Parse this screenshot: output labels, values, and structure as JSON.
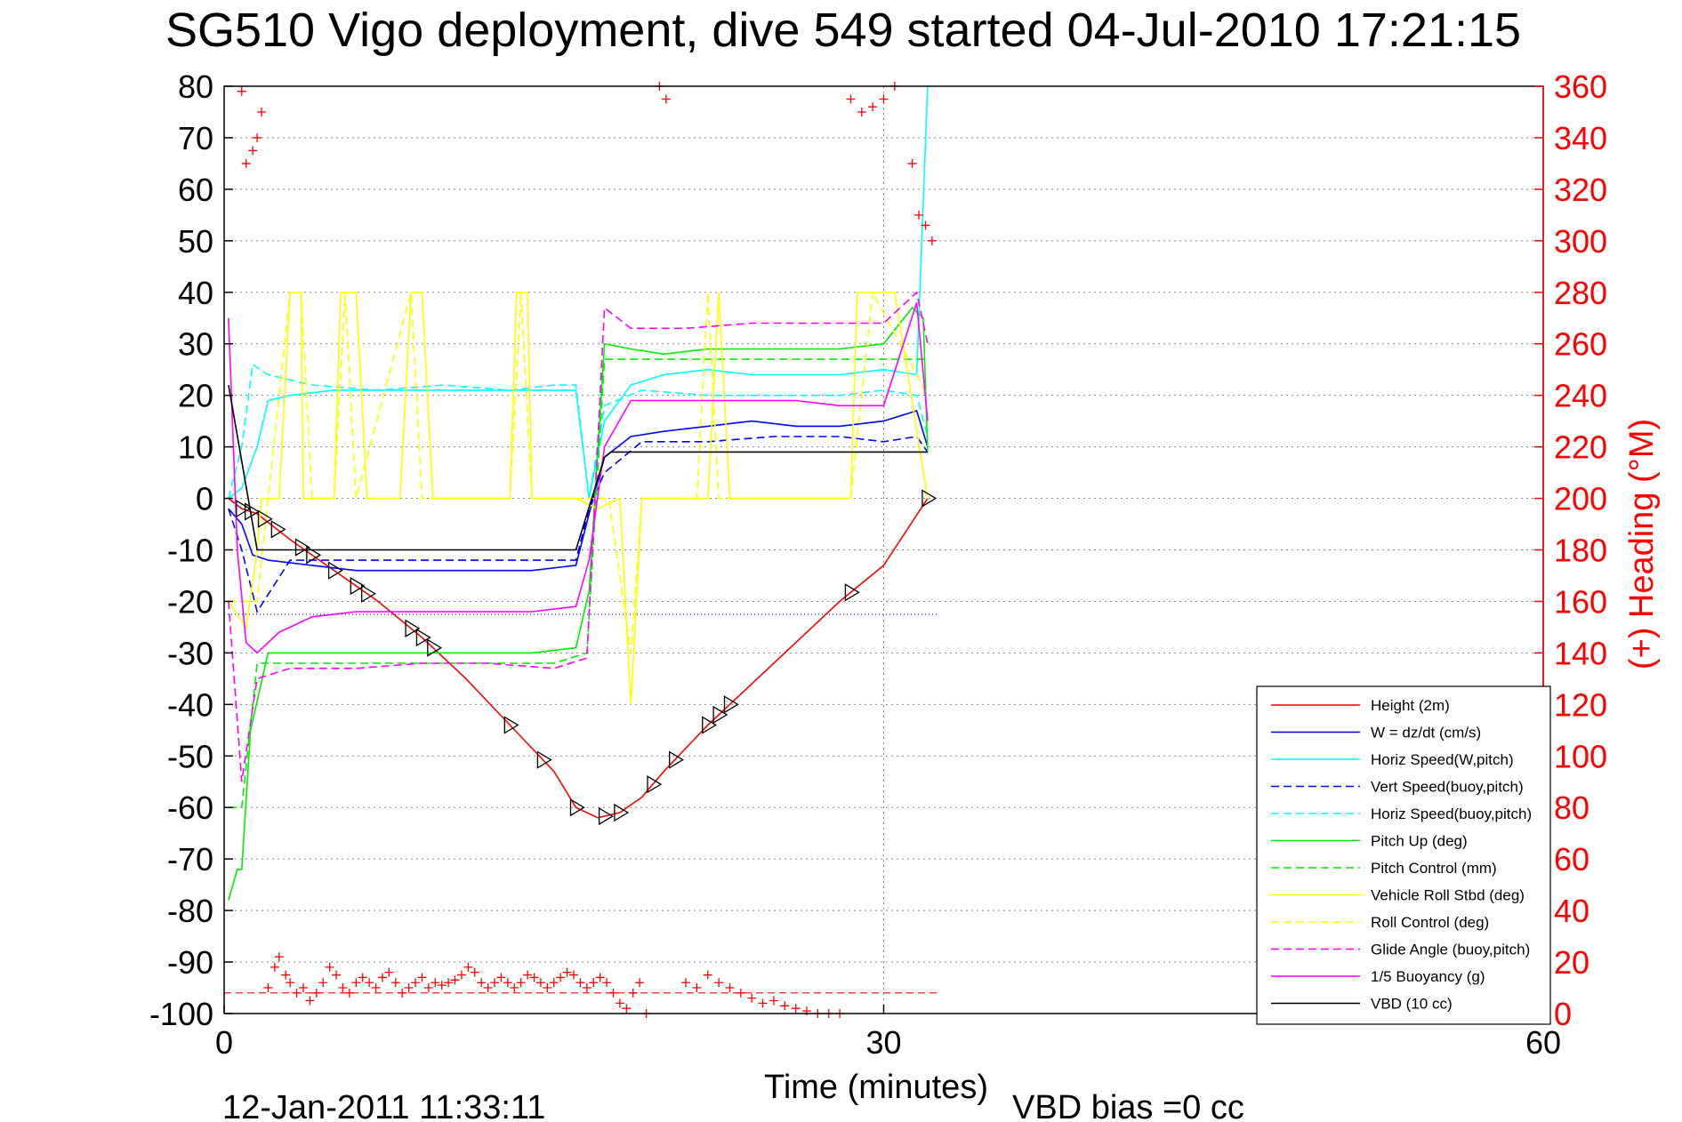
{
  "title": "SG510 Vigo deployment, dive 549 started 04-Jul-2010 17:21:15",
  "footer": {
    "date_stamp": "12-Jan-2011 11:33:11",
    "vbd_bias": "VBD bias =0 cc"
  },
  "colors": {
    "red": "#ff0000",
    "blue": "#0000ff",
    "cyan": "#00ffff",
    "green": "#00ee00",
    "yellow": "#ffff00",
    "magenta": "#ff00ff",
    "black": "#000000"
  },
  "chart_data": {
    "type": "line",
    "title": "SG510 Vigo deployment, dive 549 started 04-Jul-2010 17:21:15",
    "xlabel": "Time (minutes)",
    "ylabel": "",
    "y2label": "(+) Heading (°M)",
    "xlim": [
      0,
      60
    ],
    "ylim": [
      -100,
      80
    ],
    "y2lim": [
      0,
      360
    ],
    "x_ticks": [
      "0",
      "30",
      "60"
    ],
    "y_ticks": [
      "80",
      "70",
      "60",
      "50",
      "40",
      "30",
      "20",
      "10",
      "0",
      "-10",
      "-20",
      "-30",
      "-40",
      "-50",
      "-60",
      "-70",
      "-80",
      "-90",
      "-100"
    ],
    "y2_ticks": [
      "360",
      "340",
      "320",
      "300",
      "280",
      "260",
      "240",
      "220",
      "200",
      "180",
      "160",
      "140",
      "120",
      "100",
      "80",
      "60",
      "40",
      "20",
      "0"
    ],
    "grid": true,
    "legend_position": "bottom-right",
    "legend": [
      {
        "label": "Height (2m)",
        "color": "red",
        "dash": false
      },
      {
        "label": "W = dz/dt (cm/s)",
        "color": "blue",
        "dash": false
      },
      {
        "label": "Horiz Speed(W,pitch)",
        "color": "cyan",
        "dash": false
      },
      {
        "label": "Vert Speed(buoy,pitch)",
        "color": "blue",
        "dash": true
      },
      {
        "label": "Horiz Speed(buoy,pitch)",
        "color": "cyan",
        "dash": true
      },
      {
        "label": "Pitch Up (deg)",
        "color": "green",
        "dash": false
      },
      {
        "label": "Pitch Control (mm)",
        "color": "green",
        "dash": true
      },
      {
        "label": "Vehicle Roll Stbd (deg)",
        "color": "yellow",
        "dash": false
      },
      {
        "label": "Roll Control (deg)",
        "color": "yellow",
        "dash": true
      },
      {
        "label": "Glide Angle (buoy,pitch)",
        "color": "magenta",
        "dash": true
      },
      {
        "label": "1/5 Buoyancy (g)",
        "color": "magenta",
        "dash": false
      },
      {
        "label": "VBD (10 cc)",
        "color": "black",
        "dash": false
      }
    ],
    "series": [
      {
        "name": "Height (2m)",
        "color": "red",
        "dash": false,
        "x": [
          0.2,
          0.8,
          1.5,
          3,
          5,
          7,
          9,
          11,
          13,
          15,
          16,
          17,
          18,
          19,
          20,
          22,
          24,
          26,
          28,
          30,
          32
        ],
        "y": [
          0,
          -2,
          -3,
          -8,
          -14,
          -20,
          -27,
          -35,
          -44,
          -53,
          -60,
          -62,
          -61,
          -58,
          -53,
          -44,
          -36,
          -28,
          -20,
          -13,
          0
        ]
      },
      {
        "name": "W = dz/dt (cm/s)",
        "color": "blue",
        "dash": false,
        "x": [
          0.2,
          0.8,
          1.3,
          2,
          4,
          6,
          8,
          10,
          12,
          14,
          16,
          16.6,
          17.3,
          18.5,
          20,
          22,
          24,
          26,
          28,
          30,
          31.5,
          32
        ],
        "y": [
          -2,
          -5,
          -11,
          -12,
          -13,
          -14,
          -14,
          -14,
          -14,
          -14,
          -13,
          -3,
          8,
          12,
          13,
          14,
          15,
          14,
          14,
          15,
          17,
          10
        ]
      },
      {
        "name": "Horiz Speed(W,pitch)",
        "color": "cyan",
        "dash": false,
        "x": [
          0.2,
          0.8,
          1.5,
          2,
          3,
          5,
          7,
          9,
          11,
          13,
          15,
          16,
          16.6,
          17.3,
          18.5,
          20,
          22,
          24,
          26,
          28,
          30,
          31.5,
          32
        ],
        "y": [
          0,
          2,
          10,
          19,
          20,
          21,
          21,
          21,
          21,
          21,
          21,
          21,
          0,
          15,
          22,
          24,
          25,
          24,
          24,
          24,
          25,
          24,
          80
        ]
      },
      {
        "name": "Vert Speed(buoy,pitch)",
        "color": "blue",
        "dash": true,
        "x": [
          0.2,
          0.8,
          1.5,
          3,
          6,
          9,
          12,
          15,
          16,
          16.6,
          17.3,
          19,
          22,
          25,
          28,
          30,
          31.5,
          32
        ],
        "y": [
          -2,
          -10,
          -22,
          -12,
          -12,
          -12,
          -12,
          -12,
          -12,
          -2,
          5,
          11,
          11,
          12,
          12,
          11,
          12,
          9
        ]
      },
      {
        "name": "Horiz Speed(buoy,pitch)",
        "color": "cyan",
        "dash": true,
        "x": [
          0.2,
          0.8,
          1.3,
          2,
          4,
          7,
          10,
          13,
          15,
          16,
          16.6,
          17.3,
          19,
          22,
          25,
          28,
          30,
          31.5,
          32
        ],
        "y": [
          0,
          10,
          26,
          24,
          22,
          21,
          22,
          21,
          22,
          22,
          0,
          18,
          21,
          20,
          20,
          20,
          21,
          20,
          12
        ]
      },
      {
        "name": "Pitch Up (deg)",
        "color": "green",
        "dash": false,
        "x": [
          0.2,
          0.6,
          0.8,
          1.2,
          2,
          4,
          6,
          8,
          10,
          12,
          14,
          16,
          16.6,
          17.3,
          18.5,
          20,
          22,
          24,
          26,
          28,
          30,
          31.3,
          31.8,
          32
        ],
        "y": [
          -78,
          -72,
          -72,
          -45,
          -30,
          -30,
          -30,
          -30,
          -30,
          -30,
          -30,
          -29,
          -18,
          30,
          29,
          28,
          29,
          29,
          29,
          29,
          30,
          37,
          35,
          9
        ]
      },
      {
        "name": "Pitch Control (mm)",
        "color": "green",
        "dash": true,
        "x": [
          0.2,
          0.8,
          1.5,
          3,
          6,
          9,
          12,
          15,
          16.5,
          17.3,
          20,
          25,
          30,
          32
        ],
        "y": [
          -60,
          -60,
          -32,
          -32,
          -32,
          -32,
          -32,
          -32,
          -30,
          27,
          27,
          27,
          27,
          27
        ]
      },
      {
        "name": "Vehicle Roll Stbd (deg)",
        "color": "yellow",
        "dash": false,
        "x": [
          0.2,
          1.0,
          1.5,
          1.7,
          2.5,
          3.0,
          3.5,
          3.6,
          4.0,
          5.0,
          5.3,
          6.0,
          6.5,
          8.0,
          8.5,
          9.0,
          9.5,
          13.0,
          13.3,
          13.8,
          14.0,
          16.0,
          17.0,
          18.0,
          18.5,
          19.0,
          20.0,
          22.0,
          22.5,
          23.0,
          24.0,
          28.5,
          28.8,
          29.5,
          30.5,
          32.0
        ],
        "y": [
          -20,
          -25,
          -10,
          0,
          0,
          40,
          40,
          0,
          0,
          0,
          40,
          40,
          0,
          0,
          40,
          40,
          0,
          0,
          40,
          40,
          0,
          0,
          -2,
          0,
          -40,
          0,
          0,
          0,
          40,
          0,
          0,
          0,
          40,
          40,
          40,
          0
        ]
      },
      {
        "name": "Roll Control (deg)",
        "color": "yellow",
        "dash": true,
        "x": [
          0.2,
          1.5,
          3.0,
          3.5,
          4.0,
          5.0,
          5.5,
          6.0,
          8.5,
          9.0,
          13.0,
          13.5,
          14.0,
          16.0,
          17.5,
          18.5,
          19.0,
          21.5,
          22.0,
          22.5,
          28.5,
          29.0,
          29.5,
          32.0
        ],
        "y": [
          -20,
          -20,
          40,
          40,
          0,
          0,
          40,
          0,
          40,
          0,
          0,
          40,
          0,
          0,
          0,
          -30,
          0,
          0,
          40,
          0,
          0,
          20,
          40,
          20
        ]
      },
      {
        "name": "Glide Angle (buoy,pitch)",
        "color": "magenta",
        "dash": true,
        "x": [
          0.2,
          0.8,
          1.5,
          3,
          6,
          9,
          12,
          15,
          16.5,
          17.3,
          18.5,
          21,
          24,
          27,
          30,
          31.5,
          32
        ],
        "y": [
          -20,
          -55,
          -35,
          -33,
          -33,
          -32,
          -32,
          -33,
          -31,
          37,
          33,
          33,
          34,
          34,
          34,
          40,
          30
        ]
      },
      {
        "name": "1/5 Buoyancy (g)",
        "color": "magenta",
        "dash": false,
        "x": [
          0.2,
          0.6,
          1.0,
          1.5,
          2.5,
          4,
          6,
          8,
          10,
          12,
          14,
          16,
          16.6,
          17.3,
          18.5,
          20,
          22,
          24,
          26,
          28,
          30,
          31.5,
          32
        ],
        "y": [
          35,
          -10,
          -28,
          -30,
          -26,
          -23,
          -22,
          -22,
          -22,
          -22,
          -22,
          -21,
          -12,
          10,
          19,
          19,
          19,
          19,
          19,
          18,
          18,
          38,
          15
        ]
      },
      {
        "name": "VBD (10 cc)",
        "color": "black",
        "dash": false,
        "x": [
          0.2,
          1.5,
          16.0,
          17.3,
          17.6,
          31.5,
          32
        ],
        "y": [
          22,
          -10,
          -10,
          8,
          9,
          9,
          9
        ]
      }
    ],
    "heading_points": {
      "name": "(+) Heading",
      "color": "red",
      "axis": "right",
      "x": [
        0.3,
        0.8,
        1.0,
        1.3,
        1.5,
        1.7,
        2.0,
        2.3,
        2.5,
        2.8,
        3.0,
        3.3,
        3.6,
        3.9,
        4.2,
        4.5,
        4.8,
        5.1,
        5.4,
        5.7,
        6.0,
        6.3,
        6.6,
        6.9,
        7.2,
        7.5,
        7.8,
        8.1,
        8.4,
        8.7,
        9.0,
        9.3,
        9.6,
        9.9,
        10.2,
        10.5,
        10.8,
        11.1,
        11.4,
        11.7,
        12.0,
        12.3,
        12.6,
        12.9,
        13.2,
        13.5,
        13.8,
        14.1,
        14.4,
        14.7,
        15.0,
        15.3,
        15.6,
        15.9,
        16.2,
        16.5,
        16.8,
        17.1,
        17.4,
        17.7,
        18.0,
        18.3,
        18.6,
        18.9,
        19.2,
        19.5,
        19.8,
        20.1,
        21.0,
        21.5,
        22.0,
        22.5,
        23.0,
        23.5,
        24.0,
        24.5,
        25.0,
        25.5,
        26.0,
        26.5,
        27.0,
        27.5,
        28.0,
        28.5,
        29.0,
        29.5,
        30.0,
        30.5,
        31.0,
        31.3,
        31.6,
        31.9,
        32.2
      ],
      "y": [
        362,
        358,
        330,
        335,
        340,
        350,
        10,
        18,
        22,
        15,
        12,
        8,
        10,
        5,
        8,
        12,
        18,
        15,
        10,
        8,
        12,
        14,
        12,
        10,
        14,
        16,
        12,
        8,
        10,
        12,
        14,
        10,
        12,
        11,
        12,
        13,
        15,
        18,
        16,
        12,
        10,
        12,
        14,
        12,
        10,
        12,
        15,
        14,
        12,
        10,
        12,
        14,
        16,
        15,
        12,
        10,
        12,
        14,
        12,
        8,
        4,
        2,
        8,
        12,
        0,
        362,
        360,
        355,
        12,
        10,
        15,
        12,
        10,
        8,
        6,
        4,
        5,
        3,
        2,
        1,
        0,
        0,
        0,
        355,
        350,
        352,
        355,
        360,
        362,
        330,
        310,
        306,
        300
      ]
    },
    "heading_reference": {
      "color": "red",
      "dash": true,
      "x": [
        0,
        32.5
      ],
      "y2": [
        8,
        8
      ]
    },
    "blue_reference": {
      "color": "blue",
      "dash": "dotted",
      "x": [
        0,
        32.5
      ],
      "y": [
        -22.5,
        -22.5
      ]
    },
    "marker_triangles_x": [
      0.8,
      1.2,
      1.8,
      2.4,
      3.5,
      4.0,
      5.0,
      6.0,
      6.5,
      8.5,
      9.0,
      9.5,
      13.0,
      14.5,
      16.0,
      17.3,
      18.0,
      19.5,
      20.5,
      22.0,
      22.5,
      23.0,
      28.5,
      32.0
    ]
  }
}
